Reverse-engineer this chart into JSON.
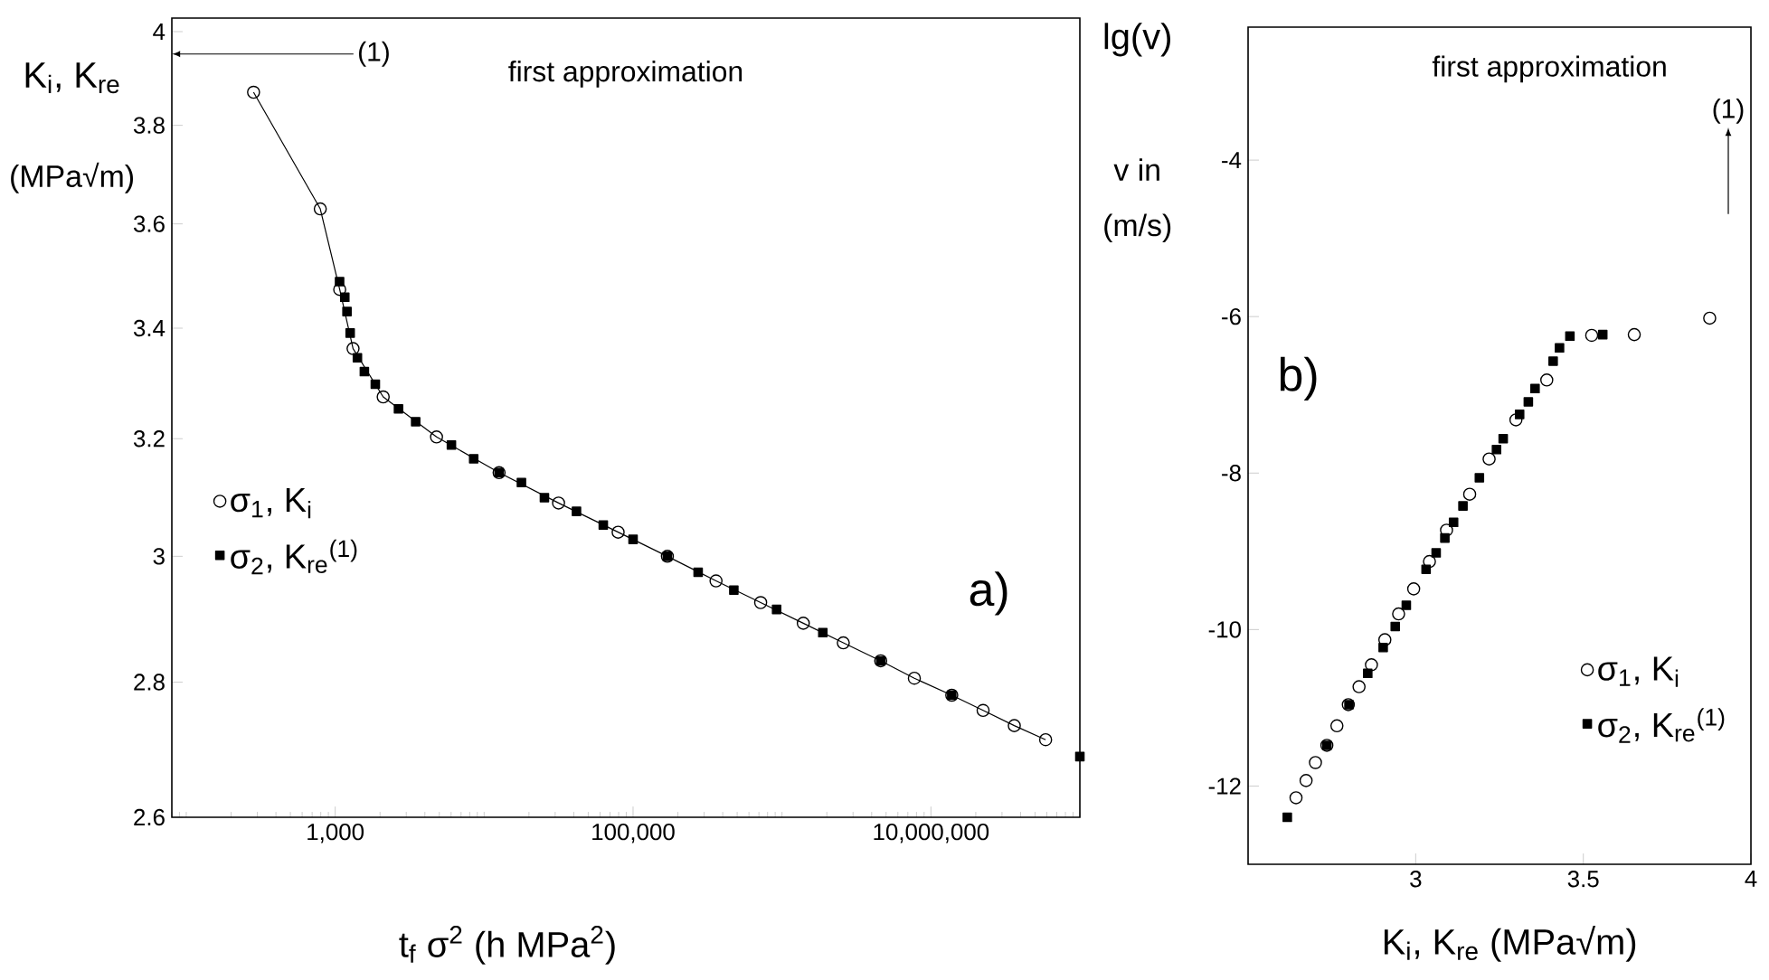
{
  "chart_data": [
    {
      "type": "line",
      "xlabel": "t$_{f}$ σ$^{2}$ (h MPa$^{2}$)",
      "ylabel": "K$_{i}$, K$_{re}$",
      "log": "xy",
      "xlim": [
        80,
        100000000
      ],
      "ylim": [
        2.6,
        4.03
      ],
      "xticks": [
        {
          "value": 1000,
          "label": "1,000"
        },
        {
          "value": 100000,
          "label": "100,000"
        },
        {
          "value": 10000000,
          "label": "10,000,000"
        }
      ],
      "yticks": [
        2.6,
        2.8,
        3,
        3.2,
        3.4,
        3.6,
        3.8,
        4
      ],
      "legend": "left",
      "series": [
        {
          "name": "σ$_{1}$, K$_{i}$",
          "type": "line",
          "marker": "circle",
          "color": "#000000",
          "x": [
            283,
            794,
            1072,
            1318,
            2100,
            4790,
            12600,
            31600,
            79400,
            170000,
            360600,
            719000,
            1390000,
            2580000,
            4600000,
            7740000,
            13800000,
            22400000,
            36300000,
            58900000
          ],
          "values": [
            3.87,
            3.63,
            3.473,
            3.362,
            3.274,
            3.203,
            3.141,
            3.089,
            3.04,
            3.0,
            2.96,
            2.925,
            2.892,
            2.861,
            2.833,
            2.806,
            2.78,
            2.757,
            2.734,
            2.713
          ]
        },
        {
          "name": "σ$_{2}$, K$_{re}$$^{(1)}$",
          "type": "scatter",
          "marker": "square",
          "color": "#000000",
          "x": [
            1070,
            1160,
            1200,
            1260,
            1410,
            1570,
            1860,
            2660,
            3470,
            6030,
            8510,
            12600,
            17800,
            25400,
            41700,
            63100,
            100000,
            170000,
            273500,
            475000,
            920000,
            1880000,
            4600000,
            13800000,
            100000000
          ],
          "values": [
            3.488,
            3.458,
            3.431,
            3.391,
            3.345,
            3.32,
            3.297,
            3.253,
            3.23,
            3.189,
            3.165,
            3.141,
            3.124,
            3.098,
            3.075,
            3.052,
            3.028,
            3.0,
            2.974,
            2.945,
            2.914,
            2.877,
            2.833,
            2.78,
            2.688
          ]
        }
      ],
      "annotations": [
        "(1)",
        "first approximation",
        "a)",
        "(MPa√m)"
      ]
    },
    {
      "type": "scatter",
      "xlabel": "K$_{i}$, K$_{re}$ (MPa√m)",
      "ylabel": "lg(v)",
      "xlim": [
        2.5,
        4
      ],
      "ylim": [
        -13,
        -2.3
      ],
      "xticks": [
        3,
        3.5,
        4
      ],
      "yticks": [
        -12,
        -10,
        -8,
        -6,
        -4
      ],
      "legend": "bottom right",
      "series": [
        {
          "name": "σ$_{1}$, K$_{i}$",
          "marker": "circle",
          "color": "#000000",
          "x": [
            2.643,
            2.673,
            2.701,
            2.735,
            2.765,
            2.799,
            2.831,
            2.868,
            2.908,
            2.949,
            2.994,
            3.041,
            3.092,
            3.161,
            3.219,
            3.299,
            3.391,
            3.525,
            3.652,
            3.877
          ],
          "values": [
            -12.15,
            -11.93,
            -11.7,
            -11.48,
            -11.23,
            -10.96,
            -10.73,
            -10.45,
            -10.13,
            -9.8,
            -9.48,
            -9.13,
            -8.73,
            -8.27,
            -7.82,
            -7.32,
            -6.81,
            -6.24,
            -6.23,
            -6.02
          ]
        },
        {
          "name": "σ$_{2}$, K$_{re}$$^{(1)}$",
          "marker": "square",
          "color": "#000000",
          "x": [
            2.617,
            2.735,
            2.801,
            2.857,
            2.903,
            2.939,
            2.972,
            3.031,
            3.061,
            3.087,
            3.113,
            3.141,
            3.19,
            3.241,
            3.261,
            3.31,
            3.336,
            3.356,
            3.41,
            3.429,
            3.46,
            3.558
          ],
          "values": [
            -12.4,
            -11.48,
            -10.96,
            -10.56,
            -10.23,
            -9.96,
            -9.69,
            -9.23,
            -9.02,
            -8.83,
            -8.63,
            -8.42,
            -8.06,
            -7.7,
            -7.56,
            -7.25,
            -7.09,
            -6.92,
            -6.57,
            -6.4,
            -6.25,
            -6.23
          ]
        }
      ],
      "annotations": [
        "(1)",
        "first approximation",
        "b)",
        "v in",
        "(m/s)"
      ]
    }
  ]
}
